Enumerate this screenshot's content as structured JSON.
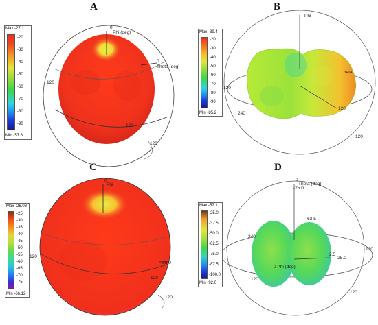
{
  "panels": {
    "A": {
      "letter": "A",
      "legend": {
        "max": "Max -27.1",
        "min": "Min -57.8",
        "ticks": [
          "-20",
          "-30",
          "-40",
          "-50",
          "-60",
          "-70",
          "-80",
          "-90"
        ]
      },
      "labels": {
        "zero": "0",
        "phi": "Phi (deg)",
        "theta_zero": "0",
        "theta": "Theta (deg)",
        "left": "120",
        "center": "120",
        "bottom": "120"
      }
    },
    "B": {
      "letter": "B",
      "legend": {
        "max": "Max -39.4",
        "min": "Min -85.2",
        "ticks": [
          "-20",
          "-30",
          "-40",
          "-50",
          "-60",
          "-70",
          "-80",
          "-90"
        ]
      },
      "labels": {
        "phi": "Phi",
        "theta": "heta",
        "left": "120",
        "right": "120",
        "left_lower": "240",
        "bottom_right": "120"
      }
    },
    "C": {
      "letter": "C",
      "legend": {
        "max": "Max -26.08",
        "min": "Min -66.12",
        "ticks": [
          "-25",
          "-30",
          "-35",
          "-40",
          "-45",
          "-50",
          "-55",
          "-60",
          "-65",
          "-70",
          "-75"
        ]
      },
      "labels": {
        "zero": "0",
        "phi": "Phi",
        "left": "120",
        "right": "-25.0",
        "center": "120",
        "bottom": "120"
      }
    },
    "D": {
      "letter": "D",
      "legend": {
        "max": "Max -57.1",
        "min": "Min -92.0",
        "ticks": [
          "-25.0",
          "-37.5",
          "-50.0",
          "-62.5",
          "-75.0",
          "-87.5",
          "-100.0"
        ]
      },
      "labels": {
        "zero": "0",
        "theta": "Theta (deg)",
        "top": "-25.0",
        "inner": "-62.5",
        "phi": "0 Phi (deg)",
        "left": "240",
        "right_inner": "2.5",
        "right": "-25.0",
        "right_top": "120",
        "bottom_left": "120",
        "bottom_right": "120"
      }
    }
  },
  "colors": {
    "red": "#f03b22",
    "orange": "#f5a020",
    "yellow": "#e2e63a",
    "green": "#39d84a",
    "cyan": "#2fd6e0",
    "blue": "#1a3ee0",
    "navy": "#1a1a8a",
    "lime": "#8fdc3a"
  }
}
